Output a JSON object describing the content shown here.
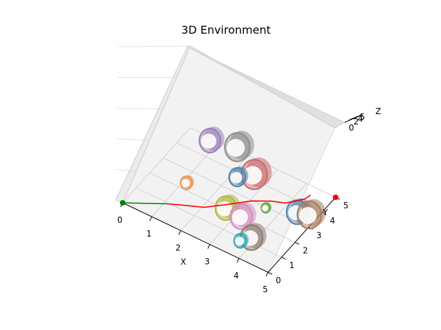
{
  "chart_data": {
    "type": "3d-scene",
    "title": "3D Environment",
    "xlabel": "X",
    "ylabel": "Y",
    "zlabel": "Z",
    "xlim": [
      0,
      5
    ],
    "ylim": [
      0,
      5
    ],
    "zlim": [
      0,
      5
    ],
    "x_ticks": [
      "0",
      "1",
      "2",
      "3",
      "4",
      "5"
    ],
    "y_ticks": [
      "0",
      "1",
      "2",
      "3",
      "4",
      "5"
    ],
    "z_ticks": [
      "0",
      "2",
      "4",
      "5"
    ],
    "grid": true,
    "start_point": {
      "x": 0,
      "y": 0,
      "z": 0,
      "color": "#008000"
    },
    "goal_point": {
      "x": 5,
      "y": 5,
      "z": 0,
      "color": "#ff0000"
    },
    "straight_segment": {
      "color": "#008000",
      "points": [
        [
          0,
          0
        ],
        [
          1.1,
          0.95
        ]
      ]
    },
    "path": {
      "color": "#ff0000",
      "points": [
        [
          1.1,
          0.95
        ],
        [
          1.6,
          1.3
        ],
        [
          2.05,
          1.6
        ],
        [
          2.55,
          2.25
        ],
        [
          3.05,
          2.95
        ],
        [
          3.55,
          3.4
        ],
        [
          3.9,
          3.6
        ],
        [
          4.1,
          3.9
        ],
        [
          4.3,
          4.25
        ],
        [
          4.35,
          4.55
        ]
      ]
    },
    "obstacles": [
      {
        "name": "purple",
        "color": "#9b7fb4",
        "x": 0.75,
        "y": 4.85,
        "r": 0.22
      },
      {
        "name": "gray",
        "color": "#8c8c8c",
        "x": 1.55,
        "y": 5.15,
        "r": 0.26
      },
      {
        "name": "red",
        "color": "#c9686b",
        "x": 2.55,
        "y": 4.25,
        "r": 0.27
      },
      {
        "name": "blue-small",
        "color": "#4f82ac",
        "x": 2.2,
        "y": 3.75,
        "r": 0.17
      },
      {
        "name": "orange-small",
        "color": "#e4955a",
        "x": 1.1,
        "y": 2.35,
        "r": 0.12
      },
      {
        "name": "olive",
        "color": "#b4b447",
        "x": 2.6,
        "y": 2.05,
        "r": 0.22
      },
      {
        "name": "pink",
        "color": "#d18ec0",
        "x": 3.15,
        "y": 2.0,
        "r": 0.23
      },
      {
        "name": "green",
        "color": "#6aa84f",
        "x": 3.55,
        "y": 2.95,
        "r": 0.09
      },
      {
        "name": "blue-large",
        "color": "#4f82ac",
        "x": 4.4,
        "y": 3.45,
        "r": 0.22
      },
      {
        "name": "brown",
        "color": "#a77c5c",
        "x": 4.75,
        "y": 3.6,
        "r": 0.25
      },
      {
        "name": "brown-gray",
        "color": "#8c7b72",
        "x": 3.85,
        "y": 1.25,
        "r": 0.23
      },
      {
        "name": "teal",
        "color": "#2fa7b8",
        "x": 3.65,
        "y": 0.85,
        "r": 0.13
      }
    ]
  }
}
